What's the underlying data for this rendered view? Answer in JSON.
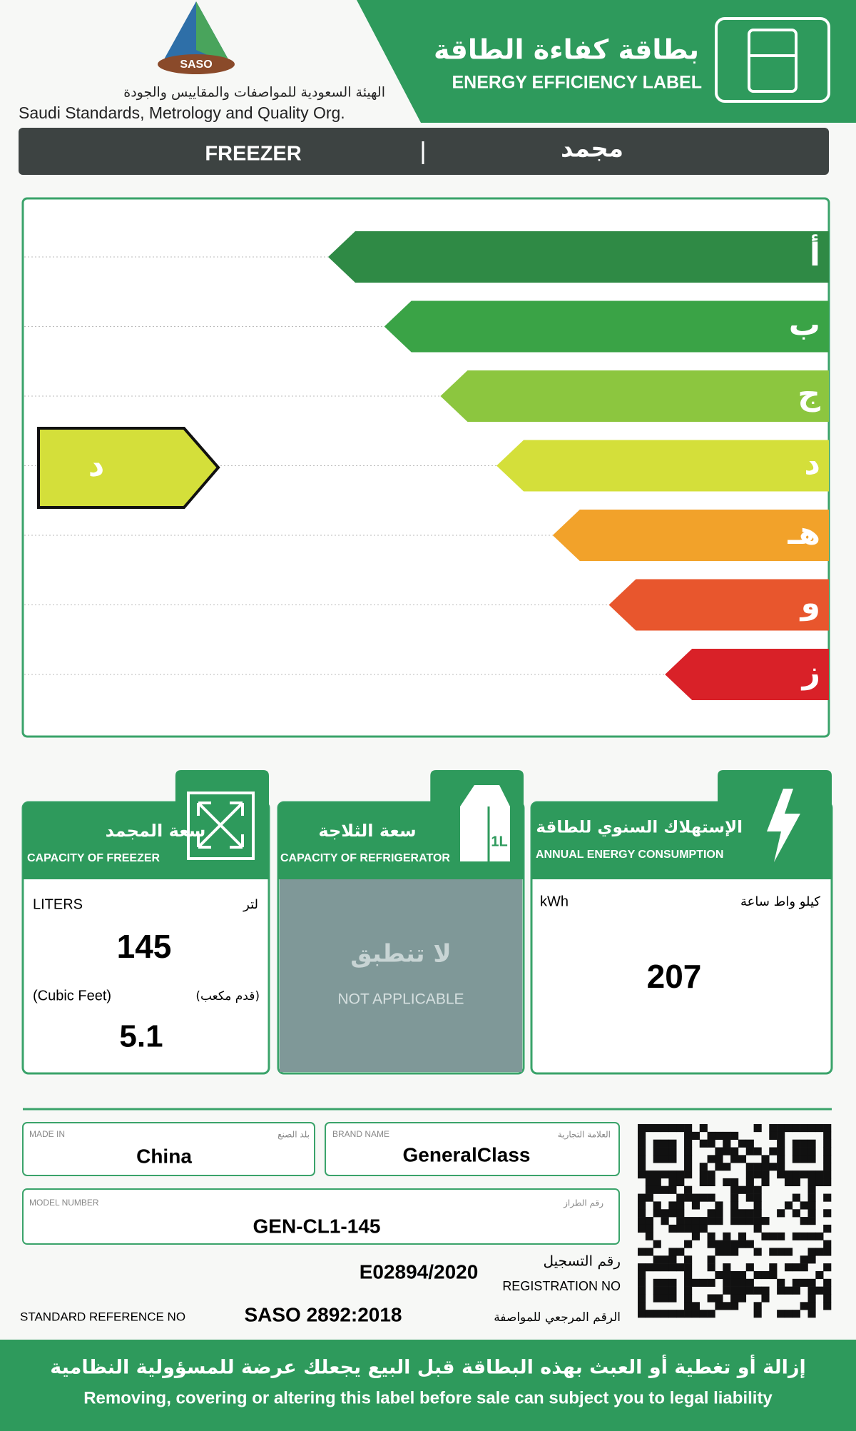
{
  "header": {
    "logo": "SASO",
    "org_ar": "الهيئة السعودية للمواصفات والمقاييس والجودة",
    "org_en": "Saudi Standards, Metrology and Quality Org.",
    "title_ar": "بطاقة كفاءة الطاقة",
    "title_en": "ENERGY EFFICIENCY LABEL"
  },
  "product": {
    "en": "FREEZER",
    "ar": "مجمد"
  },
  "rating": {
    "classes": [
      "أ",
      "ب",
      "ج",
      "د",
      "هـ",
      "و",
      "ز"
    ],
    "current": "د"
  },
  "panels": {
    "freezer": {
      "title_ar": "سعة المجمد",
      "title_en": "CAPACITY OF FREEZER",
      "unit_en": "LITERS",
      "unit_ar": "لتر",
      "value": 145,
      "unit2_en": "(Cubic Feet)",
      "unit2_ar": "(قدم مكعب)",
      "value2": 5.1
    },
    "refrigerator": {
      "title_ar": "سعة الثلاجة",
      "title_en": "CAPACITY OF REFRIGERATOR",
      "icon_text": "1L",
      "na_ar": "لا تنطبق",
      "na_en": "NOT APPLICABLE"
    },
    "energy": {
      "title_ar": "الإستهلاك السنوي للطاقة",
      "title_en": "ANNUAL ENERGY CONSUMPTION",
      "unit_en": "kWh",
      "unit_ar": "كيلو واط ساعة",
      "value": 207
    }
  },
  "info": {
    "made_in": {
      "label_en": "MADE IN",
      "label_ar": "بلد الصنع",
      "value": "China"
    },
    "brand": {
      "label_en": "BRAND NAME",
      "label_ar": "العلامة التجارية",
      "value": "GeneralClass"
    },
    "model": {
      "label_en": "MODEL NUMBER",
      "label_ar": "رقم الطراز",
      "value": "GEN-CL1-145"
    },
    "registration": {
      "value": "E02894/2020",
      "label_ar": "رقم التسجيل",
      "label_en": "REGISTRATION NO"
    },
    "standard": {
      "label_en": "STANDARD REFERENCE NO",
      "value": "SASO 2892:2018",
      "label_ar": "الرقم المرجعي للمواصفة"
    }
  },
  "footer": {
    "warning_ar": "إزالة أو تغطية أو العبث بهذه البطاقة قبل البيع يجعلك عرضة للمسؤولية النظامية",
    "warning_en": "Removing, covering or altering this label before sale can subject you to legal liability"
  }
}
